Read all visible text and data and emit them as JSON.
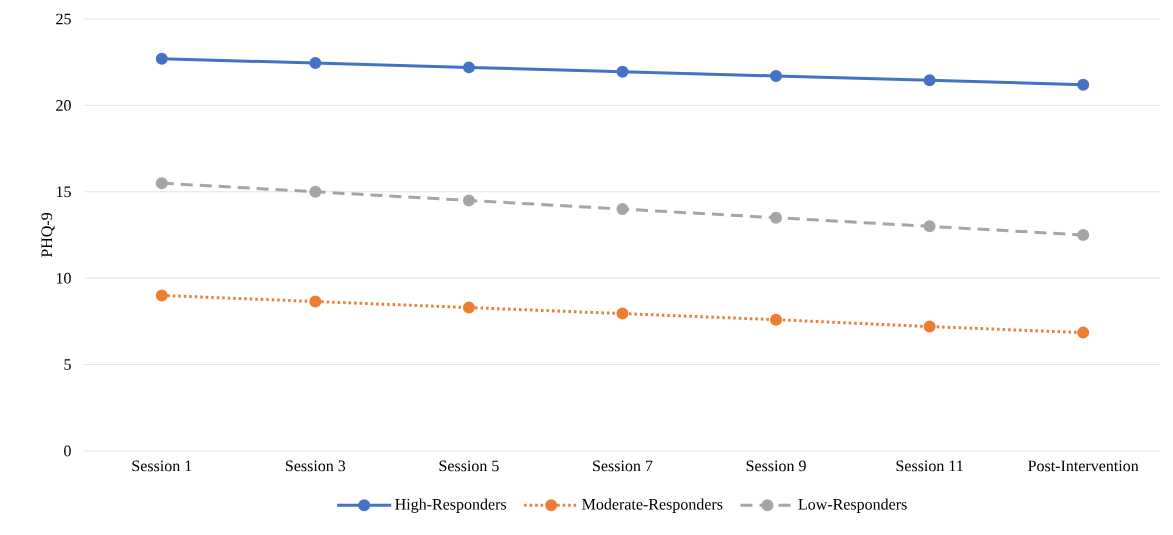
{
  "chart_data": {
    "type": "line",
    "ylabel": "PHQ-9",
    "categories": [
      "Session 1",
      "Session 3",
      "Session 5",
      "Session 7",
      "Session 9",
      "Session 11",
      "Post-Intervention"
    ],
    "series": [
      {
        "name": "High-Responders",
        "color": "#4472c4",
        "line_style": "solid",
        "values": [
          22.7,
          22.45,
          22.2,
          21.95,
          21.7,
          21.45,
          21.2
        ]
      },
      {
        "name": "Moderate-Responders",
        "color": "#ed7d31",
        "line_style": "dotted",
        "values": [
          9.0,
          8.65,
          8.3,
          7.95,
          7.6,
          7.2,
          6.85
        ]
      },
      {
        "name": "Low-Responders",
        "color": "#a5a5a5",
        "line_style": "dashed",
        "values": [
          15.5,
          15.0,
          14.5,
          14.0,
          13.5,
          13.0,
          12.5
        ]
      }
    ],
    "ylim": [
      0,
      25
    ],
    "yticks": [
      0,
      5,
      10,
      15,
      20,
      25
    ],
    "grid": "y",
    "legend": "bottom",
    "marker": "circle"
  }
}
